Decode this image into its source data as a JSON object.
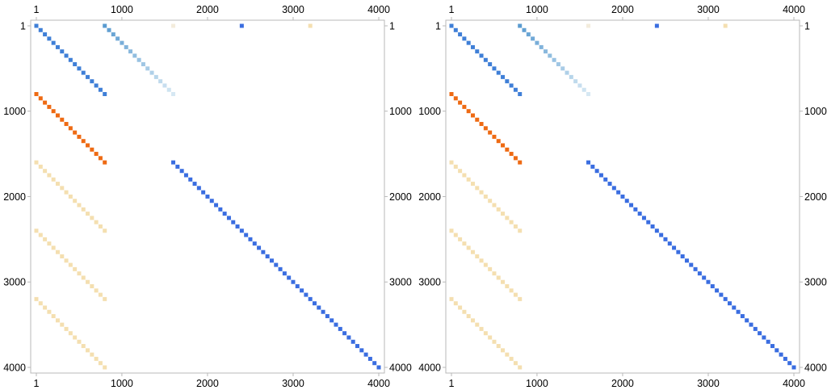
{
  "chart_data": [
    {
      "type": "matrix-plot",
      "title": "",
      "x_ticks": [
        "1",
        "1000",
        "2000",
        "3000",
        "4000"
      ],
      "y_ticks": [
        "1",
        "1000",
        "2000",
        "3000",
        "4000"
      ],
      "x_tick_values": [
        1,
        1000,
        2000,
        3000,
        4000
      ],
      "y_tick_values": [
        1,
        1000,
        2000,
        3000,
        4000
      ],
      "xlim": [
        1,
        4000
      ],
      "ylim": [
        1,
        4000
      ],
      "diagonal_segments": [
        {
          "row_start": 1,
          "row_end": 800,
          "col_start": 1,
          "col_end": 800,
          "color_start": "#3f7fd7",
          "color_end": "#3f7fd7"
        },
        {
          "row_start": 1,
          "row_end": 800,
          "col_start": 800,
          "col_end": 1600,
          "color_start": "#5a9bd0",
          "color_end": "#d6e8f3"
        },
        {
          "row_start": 800,
          "row_end": 1600,
          "col_start": 1,
          "col_end": 800,
          "color_start": "#ee6a13",
          "color_end": "#ee6a13"
        },
        {
          "row_start": 1600,
          "row_end": 2400,
          "col_start": 1,
          "col_end": 800,
          "color_start": "#f4dfb0",
          "color_end": "#f4dfb0"
        },
        {
          "row_start": 2400,
          "row_end": 3200,
          "col_start": 1,
          "col_end": 800,
          "color_start": "#f4dfb0",
          "color_end": "#f4dfb0"
        },
        {
          "row_start": 3200,
          "row_end": 4000,
          "col_start": 1,
          "col_end": 800,
          "color_start": "#f4dfb0",
          "color_end": "#f4dfb0"
        },
        {
          "row_start": 1600,
          "row_end": 4000,
          "col_start": 1600,
          "col_end": 4000,
          "color_start": "#3a6de0",
          "color_end": "#3a6de0"
        }
      ],
      "isolated_entries": [
        {
          "row": 1,
          "col": 1600,
          "color": "#f3ecdc"
        },
        {
          "row": 1,
          "col": 2400,
          "color": "#3a6de0"
        },
        {
          "row": 1,
          "col": 3200,
          "color": "#f4dfb0"
        }
      ]
    },
    {
      "type": "matrix-plot",
      "title": "",
      "x_ticks": [
        "1",
        "1000",
        "2000",
        "3000",
        "4000"
      ],
      "y_ticks": [
        "1",
        "1000",
        "2000",
        "3000",
        "4000"
      ],
      "x_tick_values": [
        1,
        1000,
        2000,
        3000,
        4000
      ],
      "y_tick_values": [
        1,
        1000,
        2000,
        3000,
        4000
      ],
      "xlim": [
        1,
        4000
      ],
      "ylim": [
        1,
        4000
      ],
      "diagonal_segments": [
        {
          "row_start": 1,
          "row_end": 800,
          "col_start": 1,
          "col_end": 800,
          "color_start": "#3f7fd7",
          "color_end": "#3f7fd7"
        },
        {
          "row_start": 1,
          "row_end": 800,
          "col_start": 800,
          "col_end": 1600,
          "color_start": "#5a9bd0",
          "color_end": "#d6e8f3"
        },
        {
          "row_start": 800,
          "row_end": 1600,
          "col_start": 1,
          "col_end": 800,
          "color_start": "#ee6a13",
          "color_end": "#ee6a13"
        },
        {
          "row_start": 1600,
          "row_end": 2400,
          "col_start": 1,
          "col_end": 800,
          "color_start": "#f4dfb0",
          "color_end": "#f4dfb0"
        },
        {
          "row_start": 2400,
          "row_end": 3200,
          "col_start": 1,
          "col_end": 800,
          "color_start": "#f4dfb0",
          "color_end": "#f4dfb0"
        },
        {
          "row_start": 3200,
          "row_end": 4000,
          "col_start": 1,
          "col_end": 800,
          "color_start": "#f4dfb0",
          "color_end": "#f4dfb0"
        },
        {
          "row_start": 1600,
          "row_end": 4000,
          "col_start": 1600,
          "col_end": 4000,
          "color_start": "#3a6de0",
          "color_end": "#3a6de0"
        }
      ],
      "isolated_entries": [
        {
          "row": 1,
          "col": 1600,
          "color": "#f3ecdc"
        },
        {
          "row": 1,
          "col": 2400,
          "color": "#3a6de0"
        },
        {
          "row": 1,
          "col": 3200,
          "color": "#f4dfb0"
        }
      ]
    }
  ]
}
